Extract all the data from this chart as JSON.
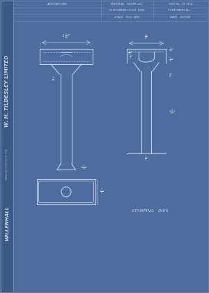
{
  "bg_color": "#4e6d9e",
  "main_color": "#5575a8",
  "strip_color": "#3d5a82",
  "line_color": "#c0cfea",
  "text_color": "#c8d5ec",
  "border_color": "#6a84b0",
  "bottom_label": "STAMPING   DIES",
  "header": {
    "col1": "ALTERATIONS",
    "col2_r1": "MATERIAL   SILVER mm",
    "col2_r2": "CUSTOMERS FOLIO  1080",
    "col2_r3": "SCALE   FULL SIZE",
    "col3_r1": "OUR No   25 /154",
    "col3_r2": "CUSTOMERS No  -",
    "col3_r3": "DATE   10/1/80"
  }
}
